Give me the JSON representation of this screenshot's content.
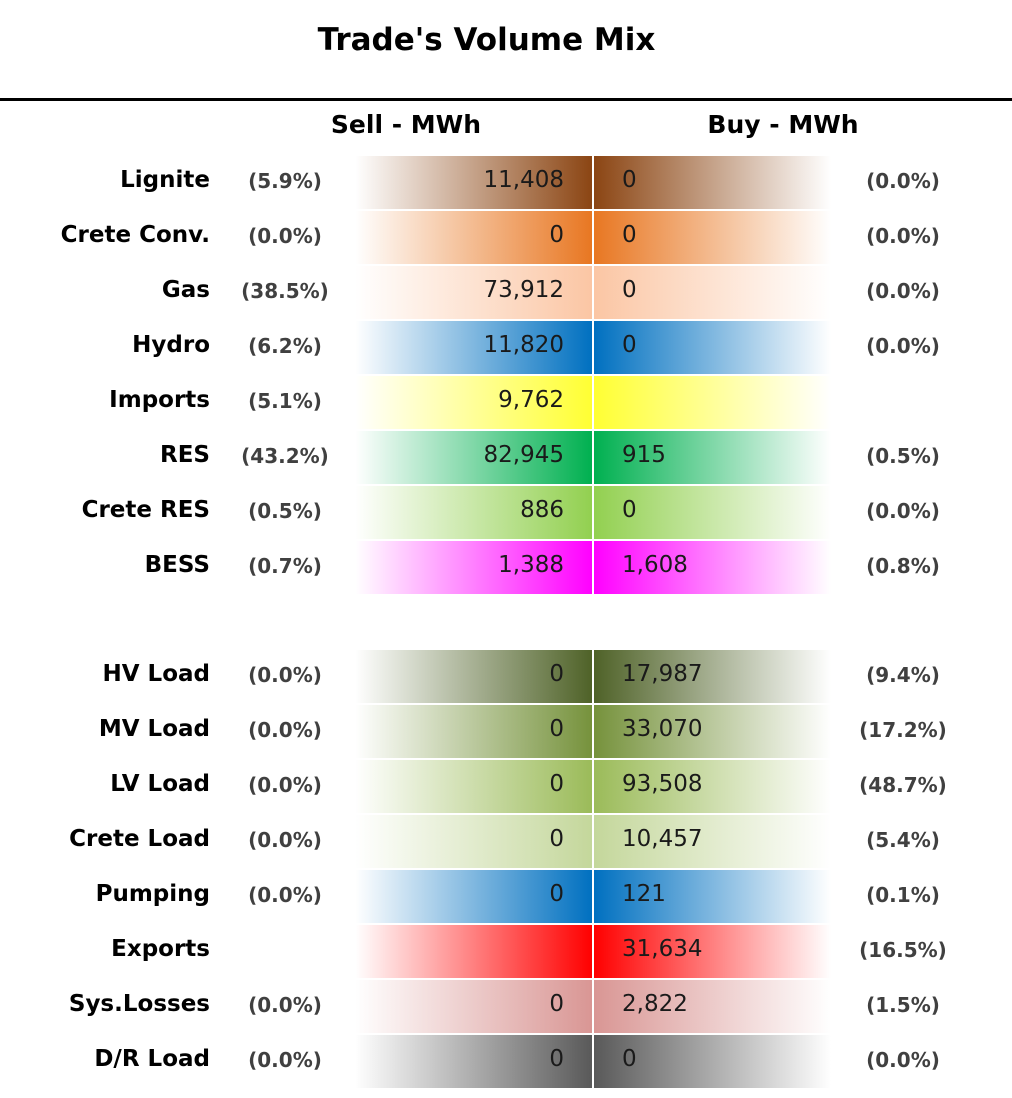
{
  "title": "Trade's Volume Mix",
  "header": {
    "sell": "Sell - MWh",
    "buy": "Buy - MWh"
  },
  "groups": [
    {
      "rows": [
        {
          "label": "Lignite",
          "sell_share": "(5.9%)",
          "sell": "11,408",
          "buy": "0",
          "buy_share": "(0.0%)",
          "color": "#8b4513"
        },
        {
          "label": "Crete Conv.",
          "sell_share": "(0.0%)",
          "sell": "0",
          "buy": "0",
          "buy_share": "(0.0%)",
          "color": "#e87722"
        },
        {
          "label": "Gas",
          "sell_share": "(38.5%)",
          "sell": "73,912",
          "buy": "0",
          "buy_share": "(0.0%)",
          "color": "#fbc6a4"
        },
        {
          "label": "Hydro",
          "sell_share": "(6.2%)",
          "sell": "11,820",
          "buy": "0",
          "buy_share": "(0.0%)",
          "color": "#0070c0"
        },
        {
          "label": "Imports",
          "sell_share": "(5.1%)",
          "sell": "9,762",
          "buy": null,
          "buy_share": null,
          "color": "#ffff33"
        },
        {
          "label": "RES",
          "sell_share": "(43.2%)",
          "sell": "82,945",
          "buy": "915",
          "buy_share": "(0.5%)",
          "color": "#00b050"
        },
        {
          "label": "Crete RES",
          "sell_share": "(0.5%)",
          "sell": "886",
          "buy": "0",
          "buy_share": "(0.0%)",
          "color": "#92d050"
        },
        {
          "label": "BESS",
          "sell_share": "(0.7%)",
          "sell": "1,388",
          "buy": "1,608",
          "buy_share": "(0.8%)",
          "color": "#ff00ff"
        }
      ]
    },
    {
      "rows": [
        {
          "label": "HV Load",
          "sell_share": "(0.0%)",
          "sell": "0",
          "buy": "17,987",
          "buy_share": "(9.4%)",
          "color": "#4f6228"
        },
        {
          "label": "MV Load",
          "sell_share": "(0.0%)",
          "sell": "0",
          "buy": "33,070",
          "buy_share": "(17.2%)",
          "color": "#76923c"
        },
        {
          "label": "LV Load",
          "sell_share": "(0.0%)",
          "sell": "0",
          "buy": "93,508",
          "buy_share": "(48.7%)",
          "color": "#9bbb59"
        },
        {
          "label": "Crete Load",
          "sell_share": "(0.0%)",
          "sell": "0",
          "buy": "10,457",
          "buy_share": "(5.4%)",
          "color": "#c4d79b"
        },
        {
          "label": "Pumping",
          "sell_share": "(0.0%)",
          "sell": "0",
          "buy": "121",
          "buy_share": "(0.1%)",
          "color": "#0070c0"
        },
        {
          "label": "Exports",
          "sell_share": null,
          "sell": null,
          "buy": "31,634",
          "buy_share": "(16.5%)",
          "color": "#ff0000"
        },
        {
          "label": "Sys.Losses",
          "sell_share": "(0.0%)",
          "sell": "0",
          "buy": "2,822",
          "buy_share": "(1.5%)",
          "color": "#d99694"
        },
        {
          "label": "D/R Load",
          "sell_share": "(0.0%)",
          "sell": "0",
          "buy": "0",
          "buy_share": "(0.0%)",
          "color": "#595959"
        }
      ]
    }
  ]
}
